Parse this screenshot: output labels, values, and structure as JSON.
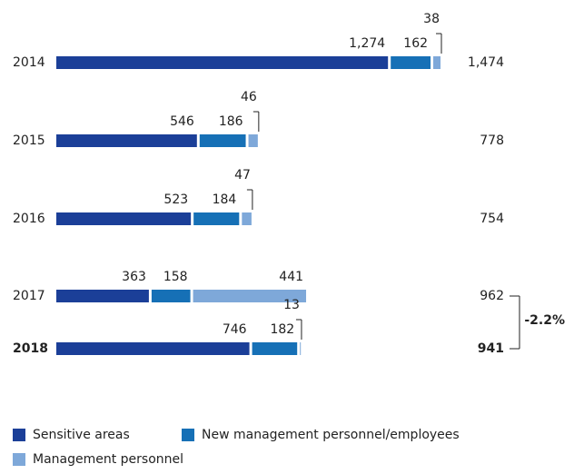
{
  "chart_data": {
    "type": "stacked-barh",
    "categories": [
      "2014",
      "2015",
      "2016",
      "2017",
      "2018"
    ],
    "series": [
      {
        "name": "Sensitive areas",
        "color": "#1b3f98",
        "values": [
          1274,
          546,
          523,
          363,
          746
        ],
        "value_labels": [
          "1,274",
          "546",
          "523",
          "363",
          "746"
        ]
      },
      {
        "name": "New management personnel/employees",
        "color": "#1670b6",
        "values": [
          162,
          186,
          184,
          158,
          182
        ]
      },
      {
        "name": "Management personnel",
        "color": "#7ea8d9",
        "values": [
          38,
          46,
          47,
          441,
          13
        ]
      }
    ],
    "totals": [
      1474,
      778,
      754,
      962,
      941
    ],
    "total_labels": [
      "1,474",
      "778",
      "754",
      "962",
      "941"
    ],
    "annotation": "-2.2%"
  }
}
